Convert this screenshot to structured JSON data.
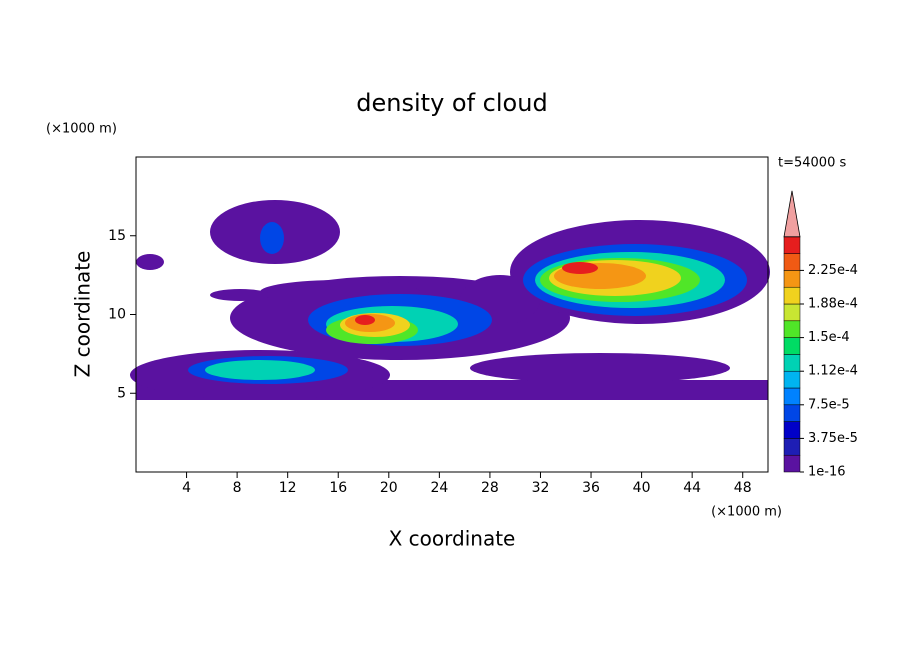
{
  "chart_data": {
    "type": "contour",
    "title": "density of cloud",
    "xlabel": "X coordinate",
    "ylabel": "Z coordinate",
    "x_unit": "(×1000 m)",
    "y_unit": "(×1000 m)",
    "time_label": "t=54000 s",
    "xlim": [
      0,
      50
    ],
    "ylim": [
      0,
      20
    ],
    "xticks": [
      4,
      8,
      12,
      16,
      20,
      24,
      28,
      32,
      36,
      40,
      44,
      48
    ],
    "yticks": [
      5,
      10,
      15
    ],
    "colorbar": {
      "ticks": [
        {
          "value": 1e-16,
          "label": "1e-16"
        },
        {
          "value": 3.75e-05,
          "label": "3.75e-5"
        },
        {
          "value": 7.5e-05,
          "label": "7.5e-5"
        },
        {
          "value": 0.000112,
          "label": "1.12e-4"
        },
        {
          "value": 0.00015,
          "label": "1.5e-4"
        },
        {
          "value": 0.000188,
          "label": "1.88e-4"
        },
        {
          "value": 0.000225,
          "label": "2.25e-4"
        }
      ],
      "colors": [
        "#5a12a0",
        "#1e1eb4",
        "#0000c8",
        "#0046e6",
        "#0082ff",
        "#00b4f0",
        "#00d2b4",
        "#00dc64",
        "#50e628",
        "#c8e632",
        "#f0d21e",
        "#f59614",
        "#f05a14",
        "#e61e1e"
      ],
      "extend_color": "#f0a0a0"
    }
  }
}
